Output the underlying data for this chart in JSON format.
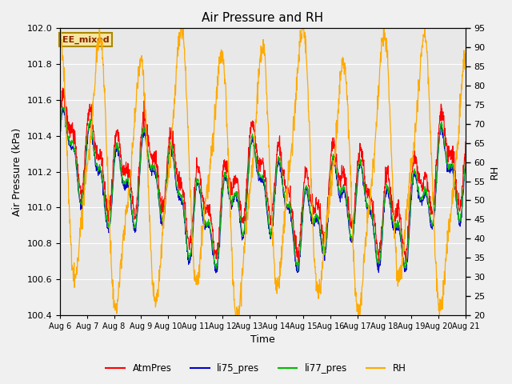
{
  "title": "Air Pressure and RH",
  "xlabel": "Time",
  "ylabel_left": "Air Pressure (kPa)",
  "ylabel_right": "RH",
  "annotation": "EE_mixed",
  "ylim_left": [
    100.4,
    102.0
  ],
  "ylim_right": [
    20,
    95
  ],
  "yticks_left": [
    100.4,
    100.6,
    100.8,
    101.0,
    101.2,
    101.4,
    101.6,
    101.8,
    102.0
  ],
  "yticks_right": [
    20,
    25,
    30,
    35,
    40,
    45,
    50,
    55,
    60,
    65,
    70,
    75,
    80,
    85,
    90,
    95
  ],
  "x_tick_labels": [
    "Aug 6",
    "Aug 7",
    "Aug 8",
    "Aug 9",
    "Aug 10",
    "Aug 11",
    "Aug 12",
    "Aug 13",
    "Aug 14",
    "Aug 15",
    "Aug 16",
    "Aug 17",
    "Aug 18",
    "Aug 19",
    "Aug 20",
    "Aug 21"
  ],
  "legend_labels": [
    "AtmPres",
    "li75_pres",
    "li77_pres",
    "RH"
  ],
  "line_colors": {
    "AtmPres": "#ff0000",
    "li75_pres": "#0000cc",
    "li77_pres": "#00bb00",
    "RH": "#ffaa00"
  },
  "background_color": "#f0f0f0",
  "plot_bg_color": "#e8e8e8",
  "grid_color": "#ffffff",
  "figwidth": 6.4,
  "figheight": 4.8,
  "dpi": 100
}
